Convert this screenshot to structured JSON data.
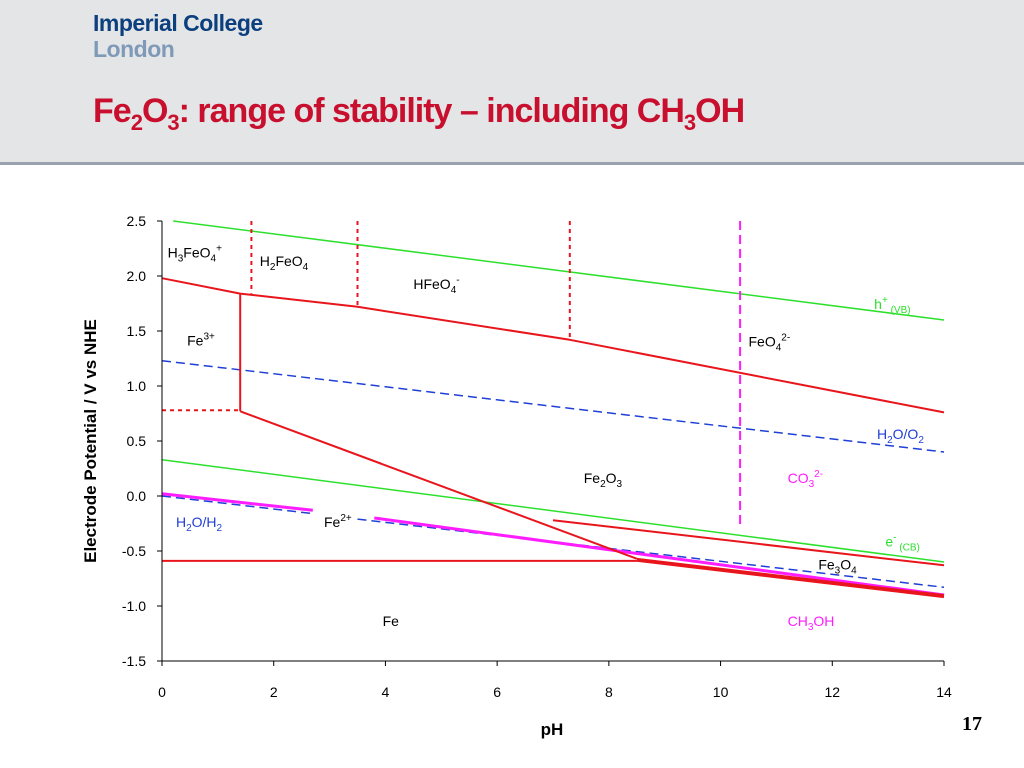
{
  "header": {
    "logo_line1": "Imperial College",
    "logo_line2": "London",
    "title_parts": [
      {
        "t": "Fe",
        "s": false
      },
      {
        "t": "2",
        "s": true
      },
      {
        "t": "O",
        "s": false
      },
      {
        "t": "3",
        "s": true
      },
      {
        "t": ": range of stability – including CH",
        "s": false
      },
      {
        "t": "3",
        "s": true
      },
      {
        "t": "OH",
        "s": false
      }
    ]
  },
  "page_number": "17",
  "colors": {
    "title": "#c8102e",
    "fe_boundary": "#e8161c",
    "water": "#1f3fd6",
    "bands": "#2ee02e",
    "carbon": "#ff1cff"
  },
  "chart_data": {
    "type": "line",
    "xlabel": "pH",
    "ylabel": "Electrode Potential / V vs NHE",
    "xlim": [
      0,
      14
    ],
    "ylim": [
      -1.5,
      2.5
    ],
    "xticks": [
      0,
      2,
      4,
      6,
      8,
      10,
      12,
      14
    ],
    "yticks": [
      2.5,
      2.0,
      1.5,
      1.0,
      0.5,
      0.0,
      -0.5,
      -1.0,
      -1.5
    ],
    "ytick_labels": [
      "2.5",
      "2.0",
      "1.5",
      "1.0",
      "0.5",
      "0.0",
      "-0.5",
      "-1.0",
      "-1.5"
    ],
    "grid": false,
    "lines": [
      {
        "color": "#2ee02e",
        "style": "solid",
        "width": 1.5,
        "points": [
          [
            0.2,
            2.5
          ],
          [
            14,
            1.6
          ]
        ]
      },
      {
        "color": "#2ee02e",
        "style": "solid",
        "width": 1.5,
        "points": [
          [
            0,
            0.33
          ],
          [
            14,
            -0.6
          ]
        ]
      },
      {
        "color": "#1f3fd6",
        "style": "dashed",
        "width": 1.5,
        "points": [
          [
            0,
            1.23
          ],
          [
            14,
            0.4
          ]
        ]
      },
      {
        "color": "#1f3fd6",
        "style": "dashed",
        "width": 1.5,
        "points": [
          [
            0,
            0.0
          ],
          [
            2.7,
            -0.16
          ]
        ]
      },
      {
        "color": "#1f3fd6",
        "style": "dashed",
        "width": 1.5,
        "points": [
          [
            3.5,
            -0.21
          ],
          [
            14,
            -0.83
          ]
        ]
      },
      {
        "color": "#ff1cff",
        "style": "solid",
        "width": 3,
        "points": [
          [
            0,
            0.02
          ],
          [
            2.7,
            -0.13
          ]
        ]
      },
      {
        "color": "#ff1cff",
        "style": "solid",
        "width": 3,
        "points": [
          [
            3.8,
            -0.2
          ],
          [
            14,
            -0.9
          ]
        ]
      },
      {
        "color": "#ff1cff",
        "style": "dashed",
        "width": 2,
        "points": [
          [
            10.35,
            2.5
          ],
          [
            10.35,
            -0.3
          ]
        ]
      },
      {
        "color": "#e8161c",
        "style": "solid",
        "width": 2,
        "points": [
          [
            0,
            1.98
          ],
          [
            1.4,
            1.84
          ],
          [
            3.5,
            1.72
          ],
          [
            7.3,
            1.42
          ],
          [
            14,
            0.76
          ]
        ]
      },
      {
        "color": "#e8161c",
        "style": "solid",
        "width": 2,
        "points": [
          [
            1.4,
            1.84
          ],
          [
            1.4,
            0.77
          ]
        ]
      },
      {
        "color": "#e8161c",
        "style": "solid",
        "width": 2,
        "points": [
          [
            1.4,
            0.77
          ],
          [
            8.5,
            -0.57
          ]
        ]
      },
      {
        "color": "#e8161c",
        "style": "solid",
        "width": 2,
        "points": [
          [
            7.0,
            -0.22
          ],
          [
            14,
            -0.63
          ]
        ]
      },
      {
        "color": "#e8161c",
        "style": "solid",
        "width": 4,
        "points": [
          [
            8.5,
            -0.58
          ],
          [
            14,
            -0.91
          ]
        ]
      },
      {
        "color": "#e8161c",
        "style": "solid",
        "width": 2,
        "points": [
          [
            0,
            -0.59
          ],
          [
            8.5,
            -0.59
          ]
        ]
      },
      {
        "color": "#e8161c",
        "style": "dotted",
        "width": 2,
        "points": [
          [
            0,
            0.78
          ],
          [
            1.4,
            0.78
          ]
        ]
      },
      {
        "color": "#e8161c",
        "style": "dotted",
        "width": 2,
        "points": [
          [
            1.6,
            2.5
          ],
          [
            1.6,
            1.84
          ]
        ]
      },
      {
        "color": "#e8161c",
        "style": "dotted",
        "width": 2,
        "points": [
          [
            3.5,
            2.5
          ],
          [
            3.5,
            1.72
          ]
        ]
      },
      {
        "color": "#e8161c",
        "style": "dotted",
        "width": 2,
        "points": [
          [
            7.3,
            2.5
          ],
          [
            7.3,
            1.42
          ]
        ]
      }
    ],
    "labels": [
      {
        "parts": [
          {
            "t": "H",
            "v": 0
          },
          {
            "t": "3",
            "v": 1
          },
          {
            "t": "FeO",
            "v": 0
          },
          {
            "t": "4",
            "v": 1
          },
          {
            "t": "+",
            "v": -1
          }
        ],
        "x": 0.1,
        "y": 2.17,
        "color": "#000000",
        "size": 14
      },
      {
        "parts": [
          {
            "t": "H",
            "v": 0
          },
          {
            "t": "2",
            "v": 1
          },
          {
            "t": "FeO",
            "v": 0
          },
          {
            "t": "4",
            "v": 1
          }
        ],
        "x": 1.75,
        "y": 2.09,
        "color": "#000000",
        "size": 14
      },
      {
        "parts": [
          {
            "t": "HFeO",
            "v": 0
          },
          {
            "t": "4",
            "v": 1
          },
          {
            "t": "-",
            "v": -1
          }
        ],
        "x": 4.5,
        "y": 1.88,
        "color": "#000000",
        "size": 14
      },
      {
        "parts": [
          {
            "t": "Fe",
            "v": 0
          },
          {
            "t": "3+",
            "v": -1
          }
        ],
        "x": 0.45,
        "y": 1.37,
        "color": "#000000",
        "size": 14
      },
      {
        "parts": [
          {
            "t": "FeO",
            "v": 0
          },
          {
            "t": "4",
            "v": 1
          },
          {
            "t": "2-",
            "v": -1
          }
        ],
        "x": 10.5,
        "y": 1.36,
        "color": "#000000",
        "size": 14
      },
      {
        "parts": [
          {
            "t": "h",
            "v": 0
          },
          {
            "t": "+",
            "v": -1
          },
          {
            "t": " (VB)",
            "v": 1
          }
        ],
        "x": 12.75,
        "y": 1.7,
        "color": "#2ee02e",
        "size": 14
      },
      {
        "parts": [
          {
            "t": "H",
            "v": 0
          },
          {
            "t": "2",
            "v": 1
          },
          {
            "t": "O/O",
            "v": 0
          },
          {
            "t": "2",
            "v": 1
          }
        ],
        "x": 12.8,
        "y": 0.52,
        "color": "#1f3fd6",
        "size": 14
      },
      {
        "parts": [
          {
            "t": "Fe",
            "v": 0
          },
          {
            "t": "2",
            "v": 1
          },
          {
            "t": "O",
            "v": 0
          },
          {
            "t": "3",
            "v": 1
          }
        ],
        "x": 7.55,
        "y": 0.12,
        "color": "#000000",
        "size": 14
      },
      {
        "parts": [
          {
            "t": "CO",
            "v": 0
          },
          {
            "t": "3",
            "v": 1
          },
          {
            "t": "2-",
            "v": -1
          }
        ],
        "x": 11.2,
        "y": 0.12,
        "color": "#ff1cff",
        "size": 14
      },
      {
        "parts": [
          {
            "t": "H",
            "v": 0
          },
          {
            "t": "2",
            "v": 1
          },
          {
            "t": "O/H",
            "v": 0
          },
          {
            "t": "2",
            "v": 1
          }
        ],
        "x": 0.25,
        "y": -0.28,
        "color": "#1f3fd6",
        "size": 14
      },
      {
        "parts": [
          {
            "t": "Fe",
            "v": 0
          },
          {
            "t": "2+",
            "v": -1
          }
        ],
        "x": 2.9,
        "y": -0.28,
        "color": "#000000",
        "size": 14
      },
      {
        "parts": [
          {
            "t": "e",
            "v": 0
          },
          {
            "t": "-",
            "v": -1
          },
          {
            "t": " (CB)",
            "v": 1
          }
        ],
        "x": 12.95,
        "y": -0.46,
        "color": "#2ee02e",
        "size": 14
      },
      {
        "parts": [
          {
            "t": "Fe",
            "v": 0
          },
          {
            "t": "3",
            "v": 1
          },
          {
            "t": "O",
            "v": 0
          },
          {
            "t": "4",
            "v": 1
          }
        ],
        "x": 11.75,
        "y": -0.67,
        "color": "#000000",
        "size": 14
      },
      {
        "parts": [
          {
            "t": "Fe",
            "v": 0
          }
        ],
        "x": 3.95,
        "y": -1.18,
        "color": "#000000",
        "size": 14
      },
      {
        "parts": [
          {
            "t": "CH",
            "v": 0
          },
          {
            "t": "3",
            "v": 1
          },
          {
            "t": "OH",
            "v": 0
          }
        ],
        "x": 11.2,
        "y": -1.18,
        "color": "#ff1cff",
        "size": 14
      }
    ]
  }
}
